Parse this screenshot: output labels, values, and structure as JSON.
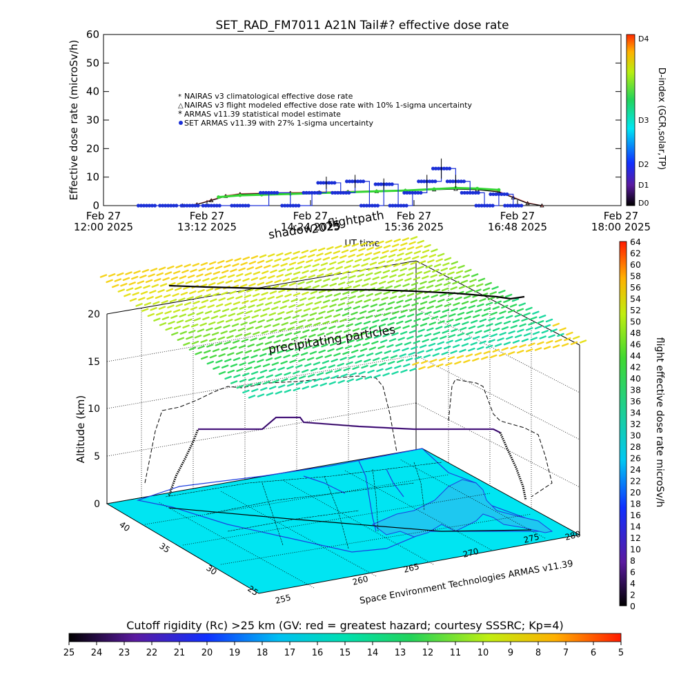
{
  "colors": {
    "nairas_clim": "#e07070",
    "nairas_flight": "#000000",
    "armas_model": "#33d633",
    "set_armas": "#1a2fd6",
    "ocean": "#00e5f2",
    "flightpath": "#000000"
  },
  "chart_data": [
    {
      "type": "line",
      "title": "SET_RAD_FM7011  A21N Tail#? effective dose rate",
      "xlabel": "UT time",
      "ylabel": "Effective dose rate (microSv/h)",
      "ylim": [
        0,
        60
      ],
      "yticks": [
        "0",
        "10",
        "20",
        "30",
        "40",
        "50",
        "60"
      ],
      "xticks": [
        {
          "line1": "Feb 27",
          "line2": "12:00 2025"
        },
        {
          "line1": "Feb 27",
          "line2": "13:12 2025"
        },
        {
          "line1": "Feb 27",
          "line2": "14:24 2025"
        },
        {
          "line1": "Feb 27",
          "line2": "15:36 2025"
        },
        {
          "line1": "Feb 27",
          "line2": "16:48 2025"
        },
        {
          "line1": "Feb 27",
          "line2": "18:00 2025"
        }
      ],
      "legend_position": "upper-left",
      "right_axis": {
        "label": "D-index (GCR,solar,TP)",
        "ticks": [
          "D0",
          "D1",
          "D2",
          "D3",
          "D4"
        ]
      },
      "series": [
        {
          "name": "NAIRAS v3 climatological effective dose rate",
          "x": [
            "12:55",
            "13:05",
            "13:15",
            "13:25",
            "13:35",
            "13:50",
            "14:10",
            "14:30",
            "14:50",
            "15:10",
            "15:30",
            "15:50",
            "16:05",
            "16:20",
            "16:35",
            "16:45",
            "16:55",
            "17:05"
          ],
          "y": [
            0,
            0.5,
            2.0,
            3.5,
            4.2,
            4.4,
            4.6,
            4.8,
            5.0,
            5.2,
            5.4,
            5.8,
            6.0,
            5.8,
            5.0,
            3.0,
            1.0,
            0
          ]
        },
        {
          "name": "NAIRAS v3 flight modeled effective dose rate with 10% 1-sigma uncertainty",
          "x": [
            "12:55",
            "13:05",
            "13:15",
            "13:25",
            "13:35",
            "13:50",
            "14:10",
            "14:30",
            "14:50",
            "15:10",
            "15:30",
            "15:50",
            "16:05",
            "16:20",
            "16:35",
            "16:45",
            "16:55",
            "17:05"
          ],
          "y": [
            0,
            0.4,
            1.8,
            3.3,
            4.0,
            4.2,
            4.4,
            4.6,
            4.8,
            5.0,
            5.2,
            5.6,
            5.8,
            5.6,
            4.8,
            2.8,
            0.8,
            0
          ]
        },
        {
          "name": "ARMAS v11.39 statistical model estimate",
          "x": [
            "13:20",
            "13:35",
            "13:50",
            "14:10",
            "14:30",
            "14:50",
            "15:10",
            "15:30",
            "15:50",
            "16:05",
            "16:20",
            "16:35"
          ],
          "y": [
            3.0,
            3.6,
            3.8,
            4.1,
            4.4,
            4.7,
            5.0,
            5.3,
            5.8,
            6.2,
            6.0,
            5.5
          ]
        },
        {
          "name": "SET ARMAS v11.39 with 27% 1-sigma uncertainty",
          "x": [
            "12:30",
            "12:45",
            "13:00",
            "13:15",
            "13:35",
            "13:55",
            "14:10",
            "14:25",
            "14:35",
            "14:45",
            "14:55",
            "15:05",
            "15:15",
            "15:25",
            "15:35",
            "15:45",
            "15:55",
            "16:05",
            "16:15",
            "16:25",
            "16:35",
            "16:45"
          ],
          "y": [
            0,
            0,
            0,
            0,
            0,
            4.5,
            0,
            4.5,
            8.0,
            4.5,
            8.5,
            0,
            7.5,
            0,
            4.5,
            8.5,
            13.0,
            8.5,
            4.5,
            0,
            4.0,
            0
          ]
        }
      ]
    },
    {
      "type": "scatter",
      "title": "",
      "axes": {
        "zlabel": "Altitude (km)",
        "zticks": [
          "0",
          "5",
          "10",
          "15",
          "20"
        ],
        "lat_ticks": [
          "25",
          "30",
          "35",
          "40"
        ],
        "lon_ticks": [
          "255",
          "260",
          "265",
          "270",
          "275",
          "280"
        ]
      },
      "annotations": [
        "precipitating particles",
        "shadow",
        "flightpath",
        "2025"
      ],
      "credit": "Space Environment Technologies ARMAS v11.39",
      "flight_dose_colorbar": {
        "label": "flight effective dose rate microSv/h",
        "ticks": [
          "0",
          "2",
          "4",
          "6",
          "8",
          "10",
          "12",
          "14",
          "16",
          "18",
          "20",
          "22",
          "24",
          "26",
          "28",
          "30",
          "32",
          "34",
          "36",
          "38",
          "40",
          "42",
          "44",
          "46",
          "48",
          "50",
          "52",
          "54",
          "56",
          "58",
          "60",
          "62",
          "64"
        ]
      },
      "cutoff_colorbar": {
        "label": "Cutoff rigidity (Rc) >25 km (GV: red = greatest hazard; courtesy SSSRC; Kp=4)",
        "ticks": [
          "25",
          "24",
          "23",
          "22",
          "21",
          "20",
          "19",
          "18",
          "17",
          "16",
          "15",
          "14",
          "13",
          "12",
          "11",
          "10",
          "9",
          "8",
          "7",
          "6",
          "5"
        ]
      }
    }
  ]
}
